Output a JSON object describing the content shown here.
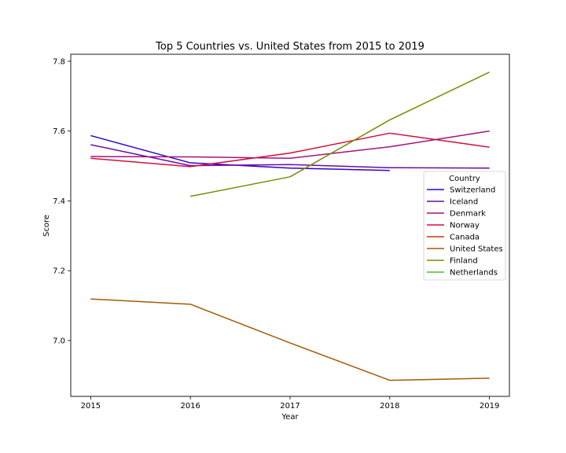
{
  "chart_data": {
    "type": "line",
    "title": "Top 5 Countries vs. United States from 2015 to 2019",
    "xlabel": "Year",
    "ylabel": "Score",
    "x": [
      2015,
      2016,
      2017,
      2018,
      2019
    ],
    "xlim": [
      2014.8,
      2019.2
    ],
    "ylim": [
      6.84,
      7.82
    ],
    "yticks": [
      7.0,
      7.2,
      7.4,
      7.6,
      7.8
    ],
    "ytick_labels": [
      "7.0",
      "7.2",
      "7.4",
      "7.6",
      "7.8"
    ],
    "xtick_labels": [
      "2015",
      "2016",
      "2017",
      "2018",
      "2019"
    ],
    "grid": false,
    "legend": {
      "title": "Country",
      "placement": "center-right"
    },
    "series": [
      {
        "name": "Switzerland",
        "color": "#3300cc",
        "values": [
          7.587,
          7.509,
          7.494,
          7.487,
          null
        ]
      },
      {
        "name": "Iceland",
        "color": "#6a0aa3",
        "values": [
          7.561,
          7.501,
          7.504,
          7.495,
          7.494
        ]
      },
      {
        "name": "Denmark",
        "color": "#a0147f",
        "values": [
          7.527,
          7.526,
          7.522,
          7.555,
          7.6
        ]
      },
      {
        "name": "Norway",
        "color": "#d0103c",
        "values": [
          7.522,
          7.498,
          7.537,
          7.594,
          7.554
        ]
      },
      {
        "name": "Canada",
        "color": "#cc3a00",
        "values": [
          null,
          null,
          null,
          null,
          null
        ]
      },
      {
        "name": "United States",
        "color": "#a65a00",
        "values": [
          7.119,
          7.104,
          6.993,
          6.886,
          6.892
        ]
      },
      {
        "name": "Finland",
        "color": "#7d8a00",
        "values": [
          null,
          7.413,
          7.469,
          7.632,
          7.769
        ]
      },
      {
        "name": "Netherlands",
        "color": "#44c233",
        "values": [
          null,
          null,
          null,
          null,
          null
        ]
      }
    ]
  }
}
